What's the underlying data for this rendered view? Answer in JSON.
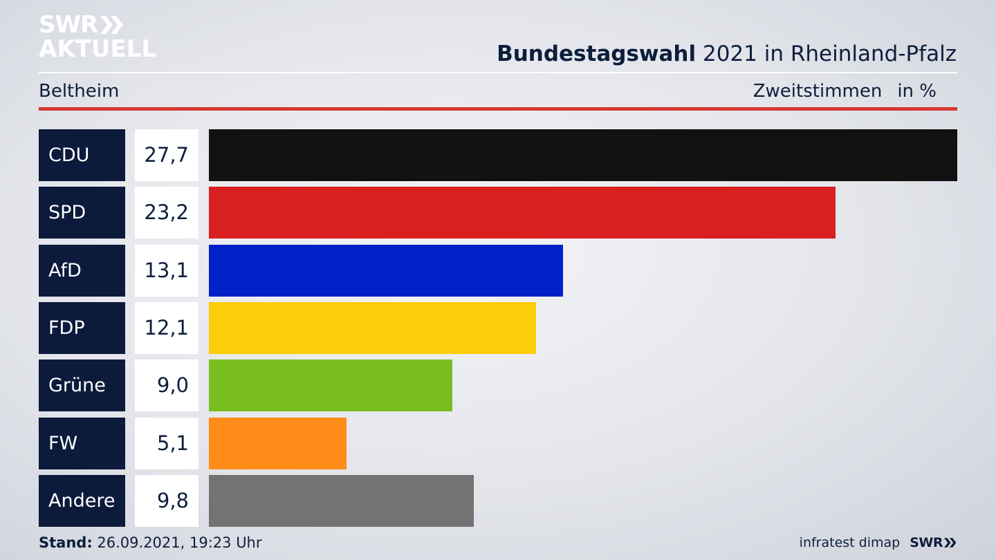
{
  "logo": {
    "line1": "SWR",
    "line2": "AKTUELL"
  },
  "header": {
    "title_bold": "Bundestagswahl",
    "title_rest": "2021 in Rheinland-Pfalz",
    "place": "Beltheim",
    "measure": "Zweitstimmen",
    "unit": "in %"
  },
  "chart_data": {
    "type": "bar",
    "orientation": "horizontal",
    "categories": [
      "CDU",
      "SPD",
      "AfD",
      "FDP",
      "Grüne",
      "FW",
      "Andere"
    ],
    "values": [
      27.7,
      23.2,
      13.1,
      12.1,
      9.0,
      5.1,
      9.8
    ],
    "value_labels": [
      "27,7",
      "23,2",
      "13,1",
      "12,1",
      "9,0",
      "5,1",
      "9,8"
    ],
    "colors": [
      "#111111",
      "#d91f20",
      "#0020c8",
      "#fecd0a",
      "#78be1e",
      "#ff8c19",
      "#737373"
    ],
    "xlim": [
      0,
      27.7
    ]
  },
  "footer": {
    "stand_label": "Stand:",
    "stand_value": "26.09.2021, 19:23 Uhr",
    "source": "infratest dimap",
    "brand": "SWR"
  }
}
